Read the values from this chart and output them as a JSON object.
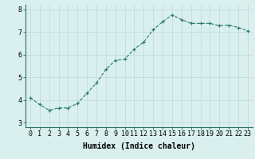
{
  "x": [
    0,
    1,
    2,
    3,
    4,
    5,
    6,
    7,
    8,
    9,
    10,
    11,
    12,
    13,
    14,
    15,
    16,
    17,
    18,
    19,
    20,
    21,
    22,
    23
  ],
  "y": [
    4.1,
    3.8,
    3.55,
    3.65,
    3.65,
    3.85,
    4.3,
    4.75,
    5.35,
    5.75,
    5.8,
    6.25,
    6.55,
    7.1,
    7.45,
    7.75,
    7.55,
    7.38,
    7.38,
    7.38,
    7.28,
    7.3,
    7.2,
    7.05
  ],
  "xlabel": "Humidex (Indice chaleur)",
  "ylim": [
    2.8,
    8.2
  ],
  "xlim": [
    -0.5,
    23.5
  ],
  "yticks": [
    3,
    4,
    5,
    6,
    7,
    8
  ],
  "xticks": [
    0,
    1,
    2,
    3,
    4,
    5,
    6,
    7,
    8,
    9,
    10,
    11,
    12,
    13,
    14,
    15,
    16,
    17,
    18,
    19,
    20,
    21,
    22,
    23
  ],
  "line_color": "#2d7a6e",
  "marker_color": "#2d7a6e",
  "bg_color": "#d9f0ef",
  "grid_color": "#c0dedd",
  "xlabel_fontsize": 7,
  "tick_fontsize": 6,
  "line_width": 0.8,
  "marker_size": 3,
  "marker_style": "+"
}
